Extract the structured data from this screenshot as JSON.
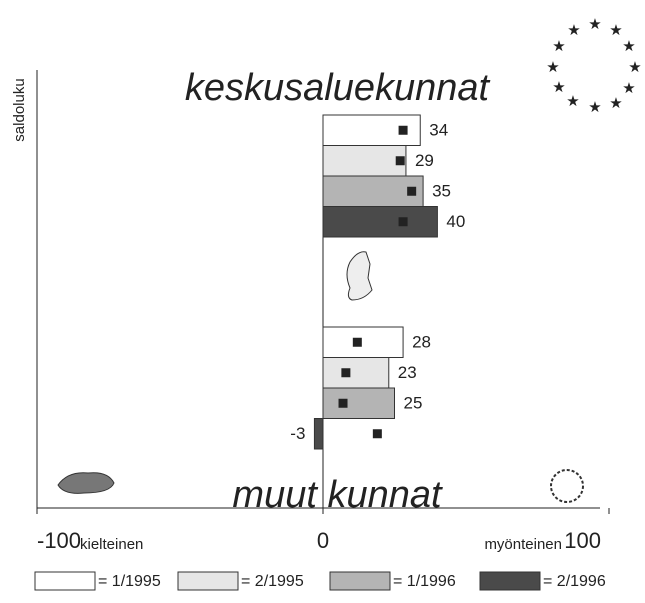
{
  "chart_data": {
    "type": "bar",
    "orientation": "horizontal",
    "ylabel": "saldoluku",
    "categories": [
      "keskusaluekunnat",
      "muut kunnat"
    ],
    "series": [
      {
        "name": "= 1/1995",
        "color": "#ffffff",
        "values": [
          34,
          28
        ],
        "markers": [
          28,
          12
        ]
      },
      {
        "name": "= 2/1995",
        "color": "#e6e6e6",
        "values": [
          29,
          23
        ],
        "markers": [
          27,
          8
        ]
      },
      {
        "name": "= 1/1996",
        "color": "#b4b4b4",
        "values": [
          35,
          25
        ],
        "markers": [
          31,
          7
        ]
      },
      {
        "name": "= 2/1996",
        "color": "#4a4a4a",
        "values": [
          40,
          -3
        ],
        "markers": [
          28,
          19
        ]
      }
    ],
    "xlim": [
      -100,
      100
    ],
    "xticks": [
      -100,
      0,
      100
    ],
    "x_side_labels": [
      "kielteinen",
      "myönteinen"
    ]
  }
}
